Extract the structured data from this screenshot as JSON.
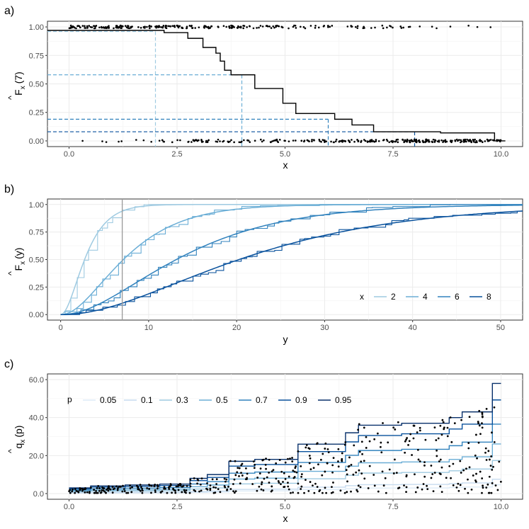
{
  "chart_data": [
    {
      "panel": "a)",
      "type": "step",
      "xlabel": "x",
      "ylabel_main": "F",
      "ylabel_sub": "x",
      "ylabel_arg": "(7)",
      "xlim": [
        -0.5,
        10.5
      ],
      "ylim": [
        -0.05,
        1.05
      ],
      "xticks": [
        0,
        2.5,
        5,
        7.5,
        10
      ],
      "xtick_labels": [
        "0.0",
        "2.5",
        "5.0",
        "7.5",
        "10.0"
      ],
      "yticks": [
        0,
        0.25,
        0.5,
        0.75,
        1
      ],
      "ytick_labels": [
        "0.00",
        "0.25",
        "0.50",
        "0.75",
        "1.00"
      ],
      "step_x": [
        -0.5,
        1.8,
        2.2,
        2.75,
        3.1,
        3.4,
        3.5,
        3.6,
        3.75,
        4.3,
        4.95,
        5.25,
        6.15,
        6.55,
        7.05,
        8.0,
        8.6,
        9.85
      ],
      "step_y": [
        0.97,
        0.97,
        0.95,
        0.9,
        0.82,
        0.77,
        0.7,
        0.62,
        0.58,
        0.46,
        0.33,
        0.24,
        0.19,
        0.14,
        0.08,
        0.08,
        0.07,
        0.0
      ],
      "quantile_refs": [
        {
          "x": 2.0,
          "y": 0.96,
          "color": "#9ecae1"
        },
        {
          "x": 4.0,
          "y": 0.58,
          "color": "#6baed6"
        },
        {
          "x": 6.0,
          "y": 0.19,
          "color": "#3182bd"
        },
        {
          "x": 8.0,
          "y": 0.08,
          "color": "#08519c"
        }
      ]
    },
    {
      "panel": "b)",
      "type": "line",
      "xlabel": "y",
      "ylabel_main": "F",
      "ylabel_sub": "x",
      "ylabel_arg": "(y)",
      "xlim": [
        -1.5,
        52.5
      ],
      "ylim": [
        -0.05,
        1.05
      ],
      "xticks": [
        0,
        10,
        20,
        30,
        40,
        50
      ],
      "xtick_labels": [
        "0",
        "10",
        "20",
        "30",
        "40",
        "50"
      ],
      "yticks": [
        0,
        0.25,
        0.5,
        0.75,
        1
      ],
      "ytick_labels": [
        "0.00",
        "0.25",
        "0.50",
        "0.75",
        "1.00"
      ],
      "vline_y": 7,
      "legend_title": "x",
      "legend_position": "bottom-right",
      "series": [
        {
          "name": "2",
          "color": "#9ecae1",
          "gamma_shape": 2.2,
          "gamma_scale": 1.45
        },
        {
          "name": "4",
          "color": "#6baed6",
          "gamma_shape": 2.2,
          "gamma_scale": 3.8
        },
        {
          "name": "6",
          "color": "#3182bd",
          "gamma_shape": 2.2,
          "gamma_scale": 7.0
        },
        {
          "name": "8",
          "color": "#08519c",
          "gamma_shape": 2.2,
          "gamma_scale": 10.8
        }
      ]
    },
    {
      "panel": "c)",
      "type": "quantile-step",
      "xlabel": "x",
      "ylabel_main": "q",
      "ylabel_sub": "x",
      "ylabel_arg": "(p)",
      "xlim": [
        -0.5,
        10.5
      ],
      "ylim": [
        -3,
        63
      ],
      "xticks": [
        0,
        2.5,
        5,
        7.5,
        10
      ],
      "xtick_labels": [
        "0.0",
        "2.5",
        "5.0",
        "7.5",
        "10.0"
      ],
      "yticks": [
        0,
        20,
        40,
        60
      ],
      "ytick_labels": [
        "0.0",
        "20.0",
        "40.0",
        "60.0"
      ],
      "legend_title": "p",
      "legend_position": "top-left",
      "series": [
        {
          "name": "0.05",
          "color": "#deebf7",
          "scale": 0.08
        },
        {
          "name": "0.1",
          "color": "#c6dbef",
          "scale": 0.13
        },
        {
          "name": "0.3",
          "color": "#9ecae1",
          "scale": 0.3
        },
        {
          "name": "0.5",
          "color": "#6baed6",
          "scale": 0.45
        },
        {
          "name": "0.7",
          "color": "#3182bd",
          "scale": 0.63
        },
        {
          "name": "0.9",
          "color": "#08519c",
          "scale": 0.85
        },
        {
          "name": "0.95",
          "color": "#08306b",
          "scale": 1.0
        }
      ],
      "top_quantile_step_x": [
        0.0,
        0.5,
        1.3,
        2.1,
        2.8,
        3.2,
        3.7,
        4.3,
        5.3,
        6.4,
        6.7,
        7.7,
        8.8,
        9.1,
        9.8,
        10.0
      ],
      "top_quantile_step_y": [
        3,
        4,
        4.5,
        5,
        8,
        10,
        17,
        18,
        26,
        32,
        36,
        37,
        40,
        43,
        58,
        58
      ]
    }
  ]
}
